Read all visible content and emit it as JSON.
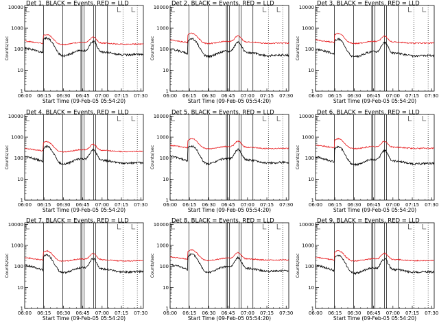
{
  "chart_data": {
    "type": "line",
    "layout": "3x3 grid",
    "x_ticks": [
      "06:00",
      "06:15",
      "06:30",
      "06:45",
      "07:00",
      "07:15",
      "07:30"
    ],
    "xlim_minutes": [
      0,
      92
    ],
    "y_ticks": [
      "1",
      "10",
      "100",
      "1000",
      "10000"
    ],
    "y_scale": "log",
    "ylim": [
      1,
      12000
    ],
    "ylabel": "Counts/sec",
    "xlabel": "Start Time (09-Feb-05 05:54:20)",
    "series_colors": {
      "events": "#000000",
      "lld": "#e8191c"
    },
    "markers": {
      "solid_minutes": [
        14.6,
        29.5,
        43.6,
        44.5,
        46.1,
        53.4,
        55.0,
        64.2
      ],
      "dotted_minutes": [
        76.2,
        87.3
      ]
    },
    "panels": [
      {
        "title": "Det 1, BLACK = Events, RED = LLD",
        "lld_scale": 2.1,
        "ev_base": 45,
        "lld_base": 110,
        "seed": 1
      },
      {
        "title": "Det 2, BLACK = Events, RED = LLD",
        "lld_scale": 2.6,
        "ev_base": 42,
        "lld_base": 120,
        "seed": 2
      },
      {
        "title": "Det 3, BLACK = Events, RED = LLD",
        "lld_scale": 2.6,
        "ev_base": 40,
        "lld_base": 125,
        "seed": 3
      },
      {
        "title": "Det 4, BLACK = Events, RED = LLD",
        "lld_scale": 2.4,
        "ev_base": 48,
        "lld_base": 130,
        "seed": 4
      },
      {
        "title": "Det 5, BLACK = Events, RED = LLD",
        "lld_scale": 3.3,
        "ev_base": 50,
        "lld_base": 180,
        "seed": 5
      },
      {
        "title": "Det 6, BLACK = Events, RED = LLD",
        "lld_scale": 3.5,
        "ev_base": 45,
        "lld_base": 190,
        "seed": 6
      },
      {
        "title": "Det 7, BLACK = Events, RED = LLD",
        "lld_scale": 2.3,
        "ev_base": 46,
        "lld_base": 115,
        "seed": 7
      },
      {
        "title": "Det 8, BLACK = Events, RED = LLD",
        "lld_scale": 2.3,
        "ev_base": 50,
        "lld_base": 125,
        "seed": 8
      },
      {
        "title": "Det 9, BLACK = Events, RED = LLD",
        "lld_scale": 2.4,
        "ev_base": 44,
        "lld_base": 120,
        "seed": 9
      }
    ]
  }
}
